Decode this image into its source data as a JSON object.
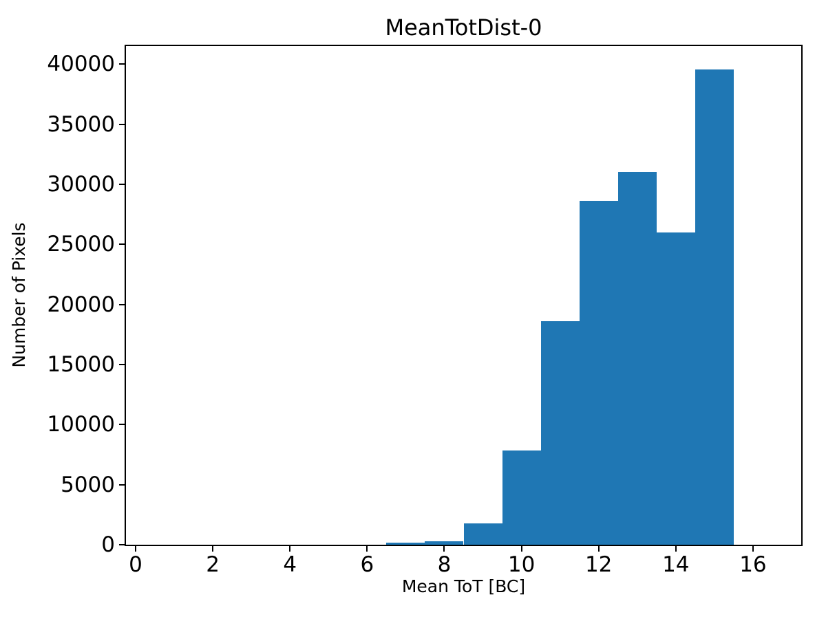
{
  "chart_data": {
    "type": "bar",
    "subtype": "histogram",
    "title": "MeanTotDist-0",
    "xlabel": "Mean ToT [BC]",
    "ylabel": "Number of Pixels",
    "bar_color": "#1f77b4",
    "bin_edges": [
      6.5,
      7.5,
      8.5,
      9.5,
      10.5,
      11.5,
      12.5,
      13.5,
      14.5,
      15.5
    ],
    "counts": [
      150,
      270,
      1800,
      7850,
      18600,
      28650,
      31000,
      26000,
      39550
    ],
    "xlim": [
      -0.25,
      17.25
    ],
    "ylim": [
      0,
      41500
    ],
    "xticks": [
      0,
      2,
      4,
      6,
      8,
      10,
      12,
      14,
      16
    ],
    "yticks": [
      0,
      5000,
      10000,
      15000,
      20000,
      25000,
      30000,
      35000,
      40000
    ],
    "grid": false,
    "legend": null,
    "background_color": "#ffffff",
    "spine_color": "#000000"
  }
}
